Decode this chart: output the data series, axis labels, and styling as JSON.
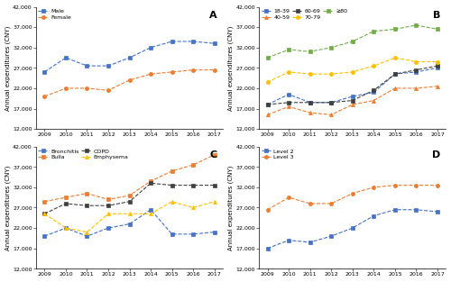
{
  "years": [
    2009,
    2010,
    2011,
    2012,
    2013,
    2014,
    2015,
    2016,
    2017
  ],
  "A": {
    "title": "A",
    "ylabel": "Annual expenditures (CNY)",
    "ylim": [
      12000,
      42000
    ],
    "yticks": [
      12000,
      17000,
      22000,
      27000,
      32000,
      37000,
      42000
    ],
    "series": {
      "Male": [
        26000,
        29500,
        27500,
        27500,
        29500,
        32000,
        33500,
        33500,
        33000
      ],
      "Female": [
        20000,
        22000,
        22000,
        21500,
        24000,
        25500,
        26000,
        26500,
        26500
      ]
    },
    "colors": {
      "Male": "#4472C4",
      "Female": "#ED7D31"
    },
    "markers": {
      "Male": "s",
      "Female": "o"
    }
  },
  "B": {
    "title": "B",
    "ylabel": "Annual expenditures (CNY)",
    "ylim": [
      12000,
      42000
    ],
    "yticks": [
      12000,
      17000,
      22000,
      27000,
      32000,
      37000,
      42000
    ],
    "series": {
      "18-39": [
        18000,
        20500,
        18500,
        18500,
        20000,
        21000,
        25500,
        26000,
        27000
      ],
      "40-59": [
        15500,
        17500,
        16000,
        15500,
        18000,
        19000,
        22000,
        22000,
        22500
      ],
      "60-69": [
        18000,
        18500,
        18500,
        18500,
        19000,
        21500,
        25500,
        26500,
        27500
      ],
      "70-79": [
        23500,
        26000,
        25500,
        25500,
        26000,
        27500,
        29500,
        28500,
        28500
      ],
      "≥80": [
        29500,
        31500,
        31000,
        32000,
        33500,
        36000,
        36500,
        37500,
        36500
      ]
    },
    "colors": {
      "18-39": "#4472C4",
      "40-59": "#ED7D31",
      "60-69": "#404040",
      "70-79": "#FFC000",
      "≥80": "#70AD47"
    },
    "markers": {
      "18-39": "s",
      "40-59": "^",
      "60-69": "s",
      "70-79": "o",
      "≥80": "s"
    },
    "legend_order": [
      "18-39",
      "40-59",
      "60-69",
      "70-79",
      "≥80"
    ]
  },
  "C": {
    "title": "C",
    "ylabel": "Annual expenditures (CNY)",
    "ylim": [
      12000,
      42000
    ],
    "yticks": [
      12000,
      17000,
      22000,
      27000,
      32000,
      37000,
      42000
    ],
    "series": {
      "Bronchitis": [
        20000,
        22000,
        20000,
        22000,
        23000,
        26500,
        20500,
        20500,
        21000
      ],
      "Bulla": [
        28500,
        29500,
        30500,
        29000,
        30000,
        33500,
        36000,
        37500,
        40000
      ],
      "COPD": [
        25500,
        28000,
        27500,
        27500,
        28500,
        33000,
        32500,
        32500,
        32500
      ],
      "Emphysema": [
        25500,
        22000,
        21000,
        25500,
        25500,
        25500,
        28500,
        27000,
        28500
      ]
    },
    "colors": {
      "Bronchitis": "#4472C4",
      "Bulla": "#ED7D31",
      "COPD": "#404040",
      "Emphysema": "#FFC000"
    },
    "markers": {
      "Bronchitis": "s",
      "Bulla": "s",
      "COPD": "s",
      "Emphysema": "^"
    }
  },
  "D": {
    "title": "D",
    "ylabel": "Annual expenditures (CNY)",
    "ylim": [
      12000,
      42000
    ],
    "yticks": [
      12000,
      17000,
      22000,
      27000,
      32000,
      37000,
      42000
    ],
    "series": {
      "Level 2": [
        17000,
        19000,
        18500,
        20000,
        22000,
        25000,
        26500,
        26500,
        26000
      ],
      "Level 3": [
        26500,
        29500,
        28000,
        28000,
        30500,
        32000,
        32500,
        32500,
        32500
      ]
    },
    "colors": {
      "Level 2": "#4472C4",
      "Level 3": "#ED7D31"
    },
    "markers": {
      "Level 2": "s",
      "Level 3": "o"
    }
  }
}
